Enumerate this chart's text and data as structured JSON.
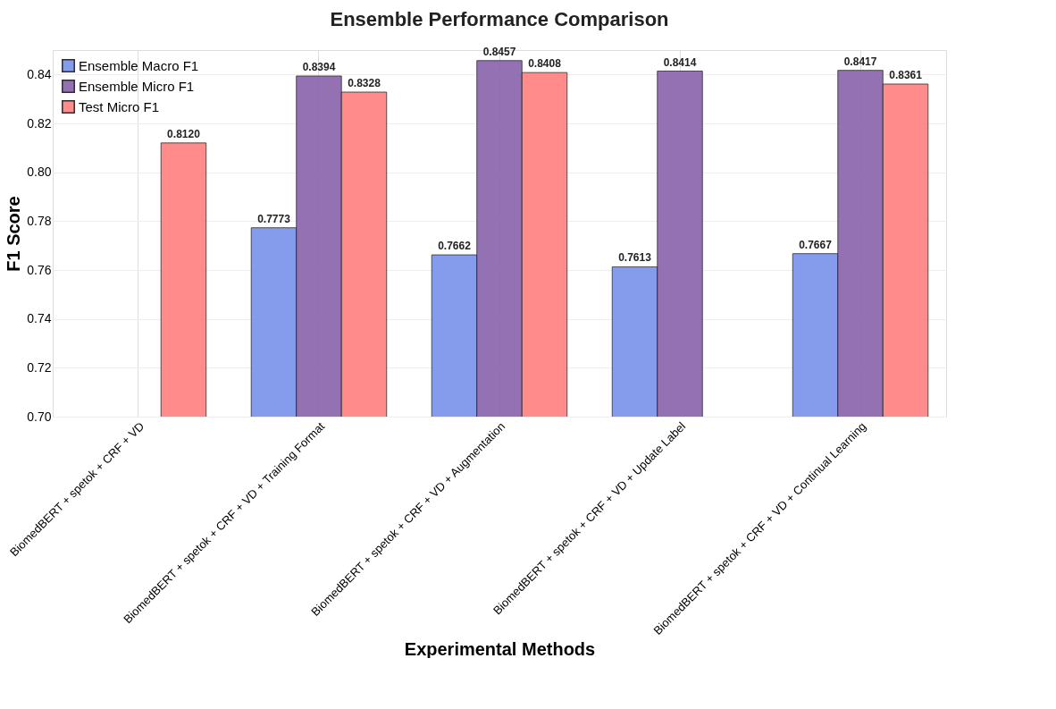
{
  "chart_data": {
    "type": "bar",
    "title": "Ensemble Performance Comparison",
    "xlabel": "Experimental Methods",
    "ylabel": "F1 Score",
    "categories": [
      "BiomedBERT + spetok + CRF + VD",
      "BiomedBERT + spetok + CRF + VD + Training Format",
      "BiomedBERT + spetok + CRF + VD + Augmentation",
      "BiomedBERT + spetok + CRF + VD + Update Label",
      "BiomedBERT + spetok + CRF + VD + Continual Learning"
    ],
    "series": [
      {
        "name": "Ensemble Macro F1",
        "color": "#7f96ea",
        "values": [
          null,
          0.7773,
          0.7662,
          0.7613,
          0.7667
        ],
        "value_labels": [
          null,
          "0.7773",
          "0.7662",
          "0.7613",
          "0.7667"
        ]
      },
      {
        "name": "Ensemble Micro F1",
        "color": "#8e6aae",
        "values": [
          null,
          0.8394,
          0.8457,
          0.8414,
          0.8417
        ],
        "value_labels": [
          null,
          "0.8394",
          "0.8457",
          "0.8414",
          "0.8417"
        ]
      },
      {
        "name": "Test Micro F1",
        "color": "#ff8585",
        "values": [
          0.812,
          0.8328,
          0.8408,
          null,
          0.8361
        ],
        "value_labels": [
          "0.8120",
          "0.8328",
          "0.8408",
          null,
          "0.8361"
        ]
      }
    ],
    "ylim": [
      0.7,
      0.85
    ],
    "yticks": [
      {
        "value": 0.7,
        "label": "0.70"
      },
      0.72,
      0.74,
      0.76,
      0.78,
      {
        "value": 0.8,
        "label": "0.80"
      },
      0.82,
      0.84
    ],
    "grid": true,
    "legend": "top left"
  }
}
